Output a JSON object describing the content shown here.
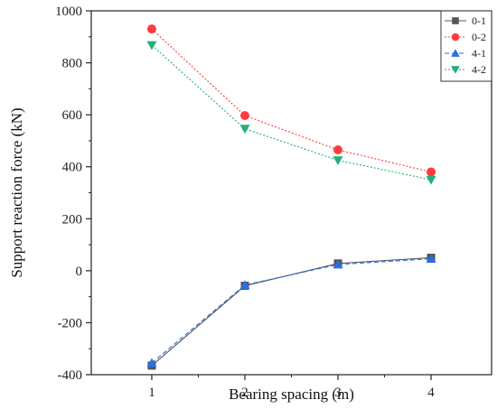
{
  "chart_data": {
    "type": "line",
    "xlabel": "Bearing spacing (m)",
    "ylabel": "Support reaction force (kN)",
    "xlim": [
      0.35,
      4.65
    ],
    "ylim": [
      -400,
      1000
    ],
    "xticks": [
      1,
      2,
      3,
      4
    ],
    "yticks": [
      -400,
      -200,
      0,
      200,
      400,
      600,
      800,
      1000
    ],
    "x": [
      1,
      2,
      3,
      4
    ],
    "legend_position": "top-right",
    "grid": false,
    "series": [
      {
        "name": "0-1",
        "values": [
          -365,
          -58,
          28,
          50
        ],
        "color": "#555555",
        "marker": "square",
        "dash": "solid"
      },
      {
        "name": "0-2",
        "values": [
          930,
          597,
          465,
          380
        ],
        "color": "#ff3b3b",
        "marker": "circle",
        "dash": "dotted"
      },
      {
        "name": "4-1",
        "values": [
          -355,
          -55,
          24,
          46
        ],
        "color": "#2a6fe0",
        "marker": "triangle-up",
        "dash": "dashed"
      },
      {
        "name": "4-2",
        "values": [
          868,
          546,
          425,
          350
        ],
        "color": "#22b07a",
        "marker": "triangle-down",
        "dash": "dotted"
      }
    ]
  }
}
